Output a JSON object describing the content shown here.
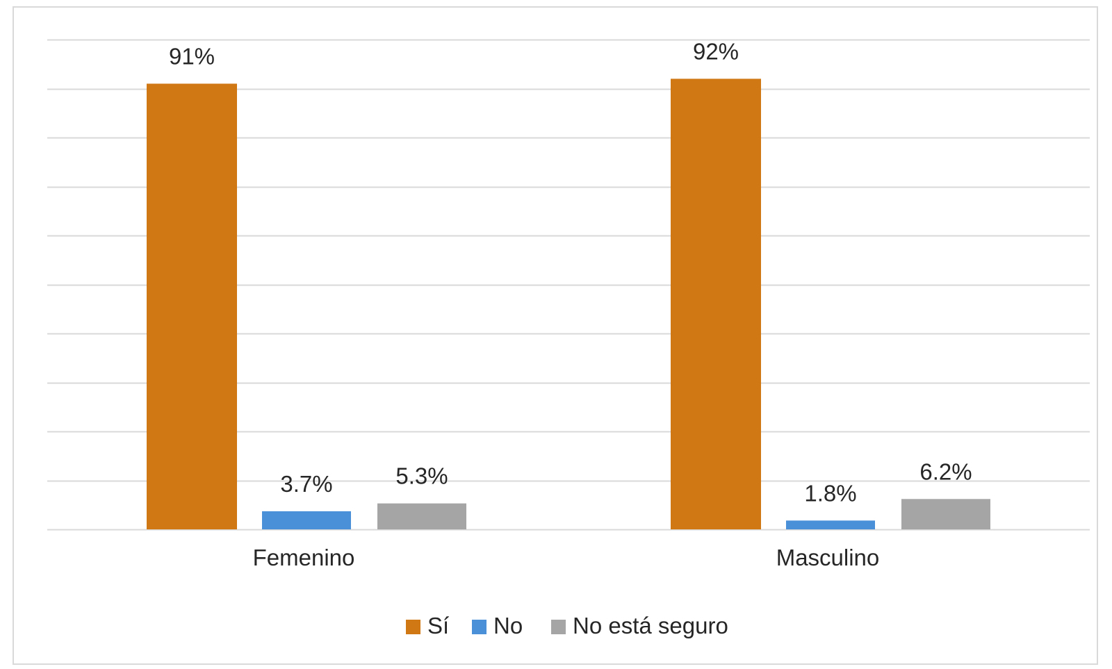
{
  "chart_data": {
    "type": "bar",
    "categories": [
      "Femenino",
      "Masculino"
    ],
    "series": [
      {
        "name": "Sí",
        "values": [
          91,
          92
        ],
        "labels": [
          "91%",
          "92%"
        ],
        "color": "#d07814"
      },
      {
        "name": "No",
        "values": [
          3.7,
          1.8
        ],
        "labels": [
          "3.7%",
          "1.8%"
        ],
        "color": "#4a90d9"
      },
      {
        "name": "No está seguro",
        "values": [
          5.3,
          6.2
        ],
        "labels": [
          "5.3%",
          "6.2%"
        ],
        "color": "#a5a5a5"
      }
    ],
    "ylim": [
      0,
      100
    ],
    "ytick_step": 10,
    "y_axis_labels_shown": false,
    "grid": true,
    "legend_position": "bottom",
    "gridline_color": "#d9d9d9"
  }
}
